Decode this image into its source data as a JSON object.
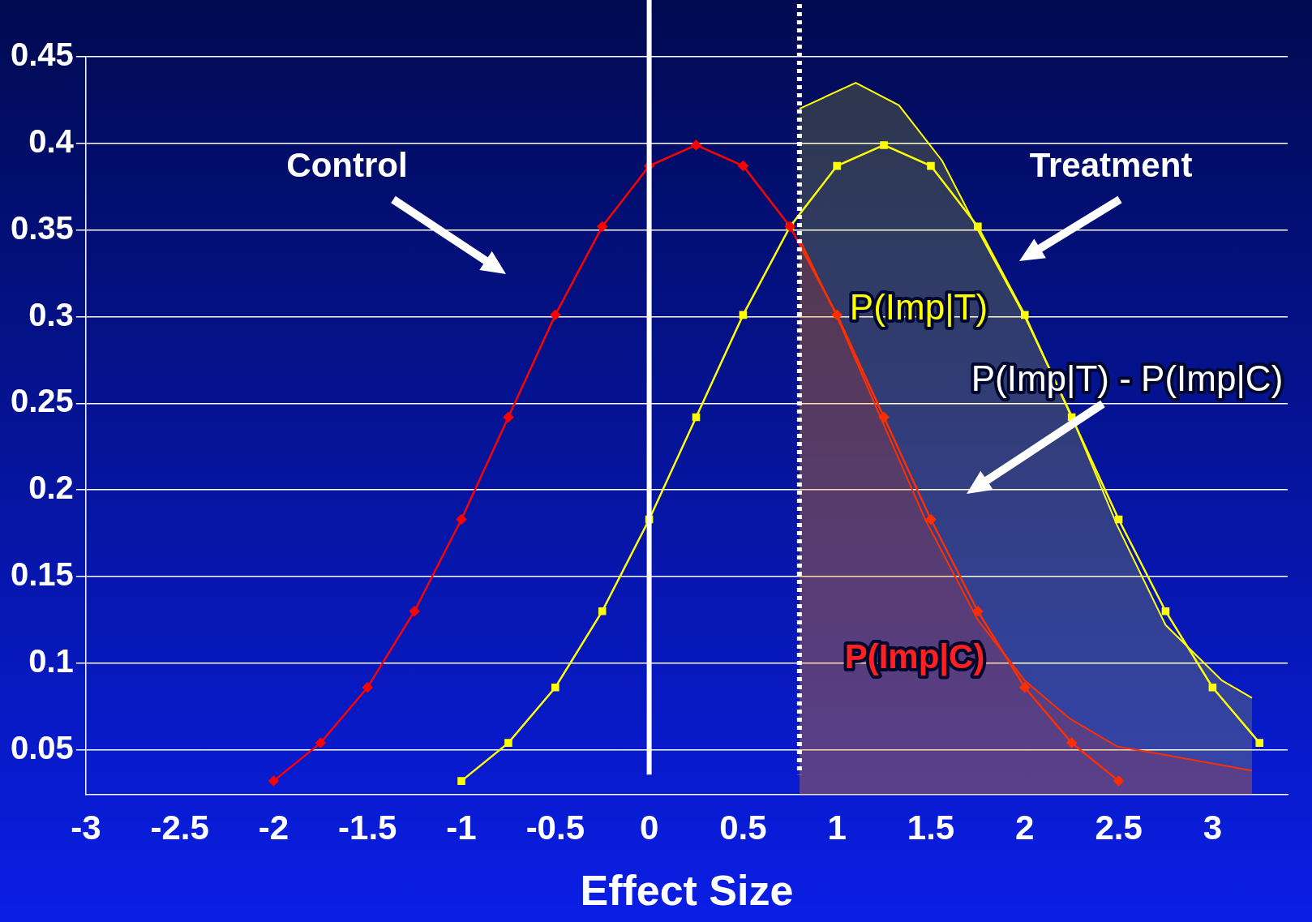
{
  "chart_data": {
    "type": "line",
    "xlabel": "Effect Size",
    "xlim": [
      -3,
      3.4
    ],
    "xticks": [
      -3,
      -2.5,
      -2,
      -1.5,
      -1,
      -0.5,
      0,
      0.5,
      1,
      1.5,
      2,
      2.5,
      3
    ],
    "ylim": [
      0.024,
      0.45
    ],
    "yticks": [
      0.05,
      0.1,
      0.15,
      0.2,
      0.25,
      0.3,
      0.35,
      0.4,
      0.45
    ],
    "grid": "y",
    "legend": false,
    "series": [
      {
        "type": "area",
        "color": "#ffff00",
        "x": [
          0.8,
          1.1,
          1.33,
          1.56,
          1.75,
          2.0,
          2.24,
          2.49,
          2.75,
          3.05,
          3.21
        ],
        "values": [
          0.42,
          0.435,
          0.422,
          0.39,
          0.35,
          0.3,
          0.245,
          0.18,
          0.122,
          0.09,
          0.08
        ],
        "marker": "none"
      },
      {
        "type": "area",
        "color": "#ff0000",
        "x": [
          0.8,
          1.0,
          1.22,
          1.47,
          1.75,
          2.0,
          2.24,
          2.49,
          2.75,
          3.21
        ],
        "values": [
          0.345,
          0.3,
          0.245,
          0.183,
          0.125,
          0.09,
          0.068,
          0.052,
          0.047,
          0.038
        ],
        "marker": "none"
      },
      {
        "color": "#ff0000",
        "marker": "diamond",
        "x": [
          -2,
          -1.75,
          -1.5,
          -1.25,
          -1,
          -0.75,
          -0.5,
          -0.25,
          0,
          0.25,
          0.5,
          0.75,
          1,
          1.25,
          1.5,
          1.75,
          2,
          2.25,
          2.5
        ],
        "values": [
          0.032,
          0.054,
          0.086,
          0.13,
          0.183,
          0.242,
          0.301,
          0.352,
          0.387,
          0.399,
          0.387,
          0.352,
          0.301,
          0.242,
          0.183,
          0.13,
          0.086,
          0.054,
          0.032
        ]
      },
      {
        "color": "#ffff00",
        "marker": "square",
        "x": [
          -1,
          -0.75,
          -0.5,
          -0.25,
          0,
          0.25,
          0.5,
          0.75,
          1,
          1.25,
          1.5,
          1.75,
          2,
          2.25,
          2.5,
          2.75,
          3,
          3.25
        ],
        "values": [
          0.032,
          0.054,
          0.086,
          0.13,
          0.183,
          0.242,
          0.301,
          0.352,
          0.387,
          0.399,
          0.387,
          0.352,
          0.301,
          0.242,
          0.183,
          0.13,
          0.086,
          0.054
        ]
      }
    ],
    "ref_lines": [
      {
        "axis": "x",
        "value": 0,
        "color": "#ffffff",
        "line_style": "solid"
      },
      {
        "axis": "x",
        "value": 0.8,
        "color": "#ffffff",
        "line_style": "dotted"
      }
    ],
    "annotations": [
      "Control",
      "Treatment",
      "P(Imp|T)",
      "P(Imp|T) - P(Imp|C)",
      "P(Imp|C)"
    ]
  }
}
